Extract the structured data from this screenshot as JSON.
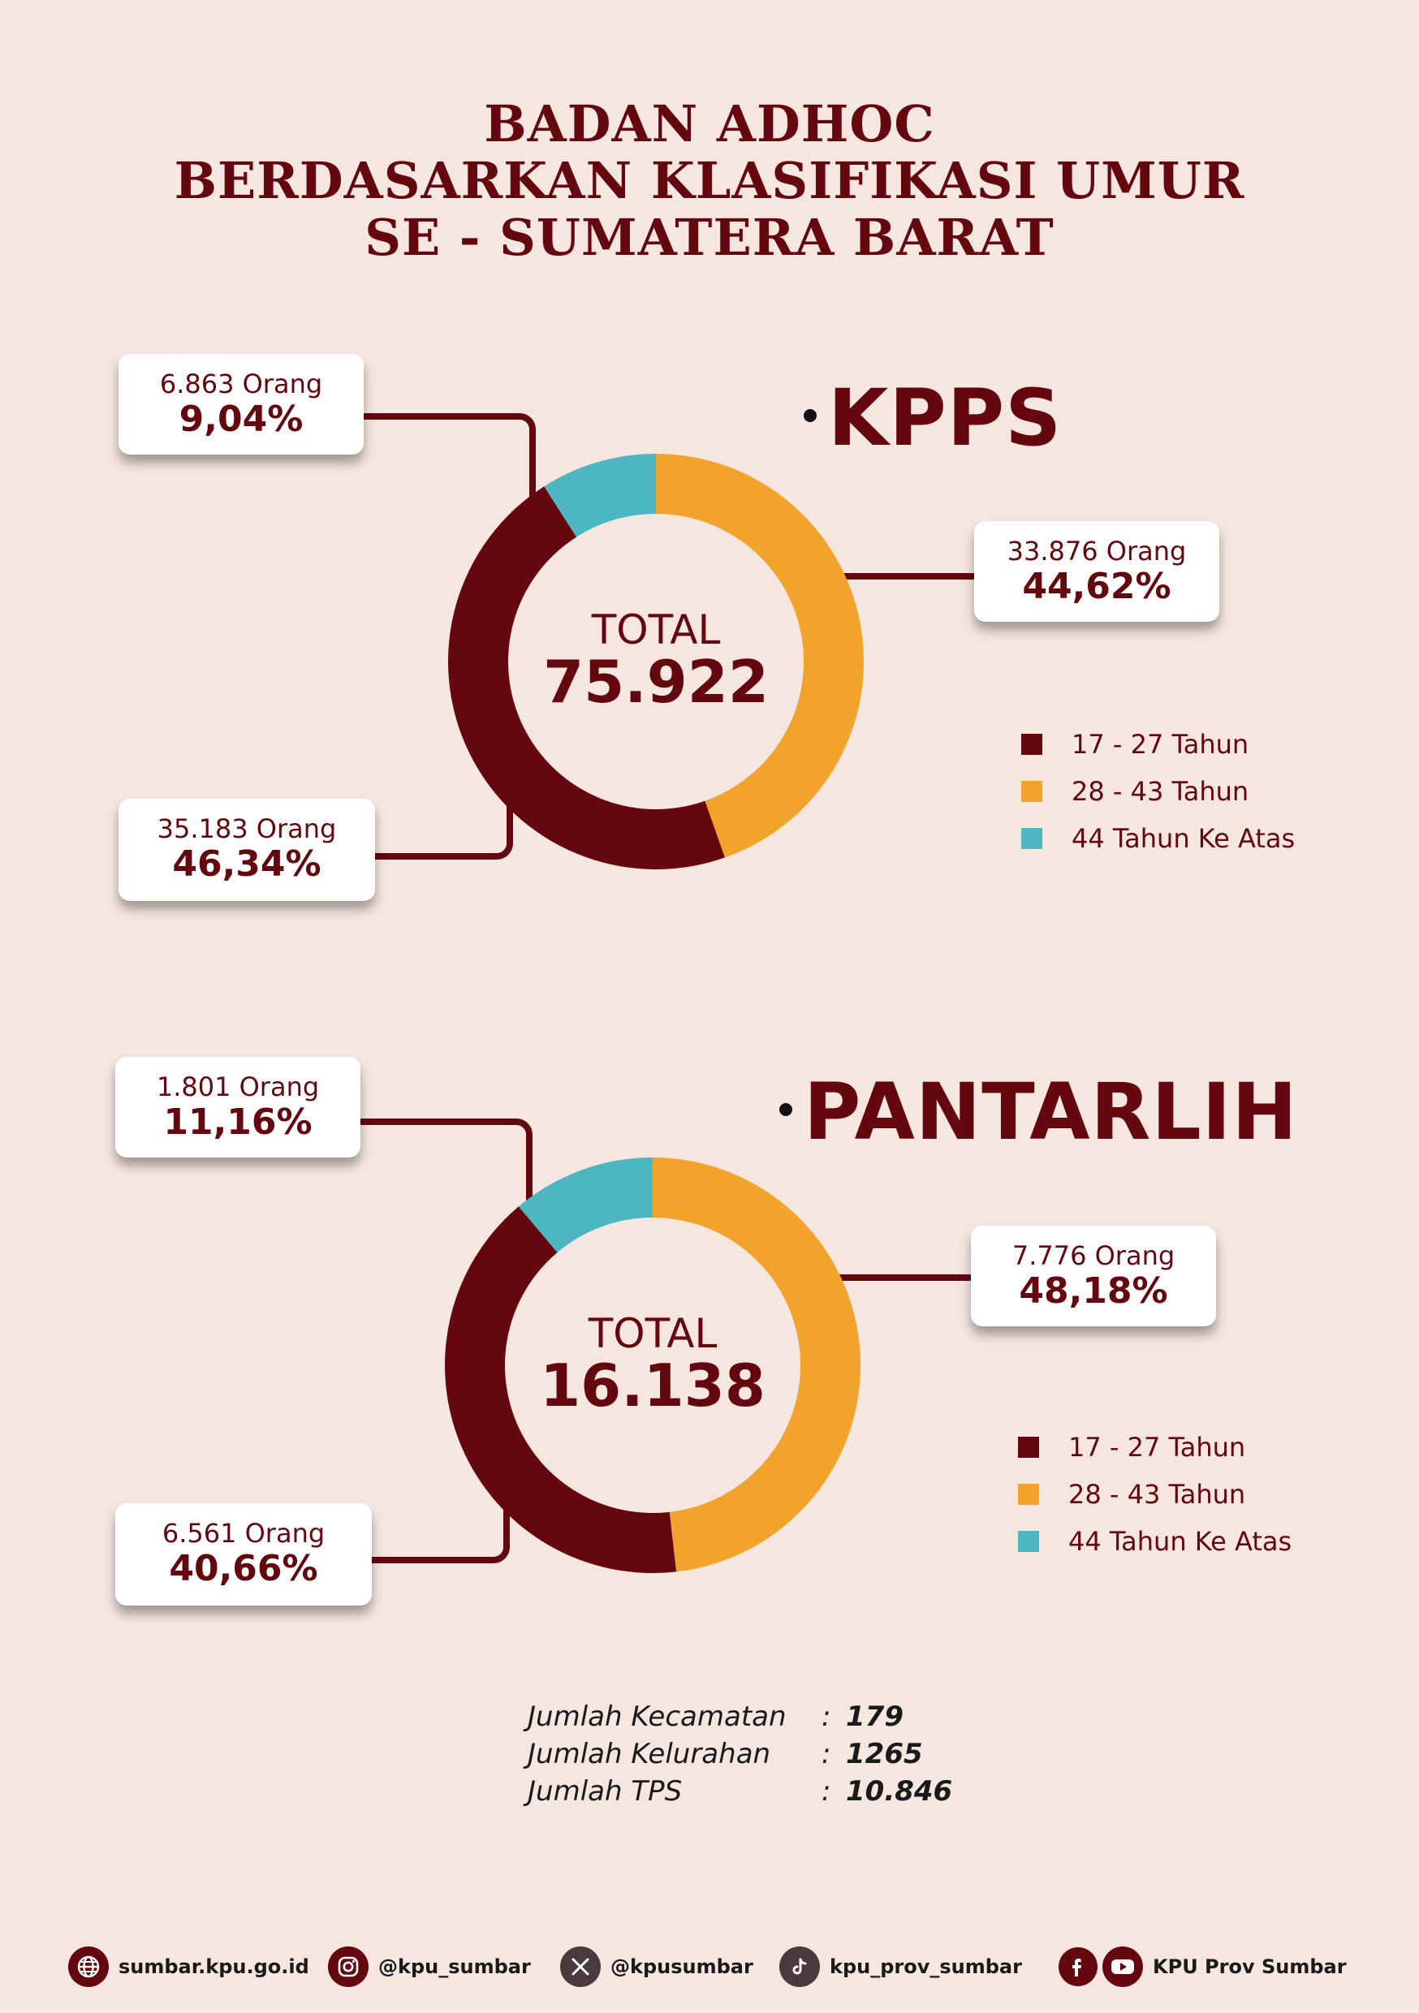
{
  "title": {
    "line1": "BADAN ADHOC",
    "line2": "BERDASARKAN KLASIFIKASI UMUR",
    "line3": "SE - SUMATERA BARAT"
  },
  "colors": {
    "age_17_27": "#65070f",
    "age_28_43": "#f2a32c",
    "age_44_up": "#4cb6c1",
    "background": "#f5e6e0"
  },
  "chart_data": [
    {
      "type": "pie",
      "title": "KPPS",
      "center_label": "TOTAL",
      "total": "75.922",
      "categories": [
        "17 - 27 Tahun",
        "28 - 43 Tahun",
        "44 Tahun Ke Atas"
      ],
      "values": [
        35183,
        33876,
        6863
      ],
      "percent": [
        46.34,
        44.62,
        9.04
      ],
      "callouts": [
        {
          "count": "35.183 Orang",
          "pct": "46,34%"
        },
        {
          "count": "33.876 Orang",
          "pct": "44,62%"
        },
        {
          "count": "6.863 Orang",
          "pct": "9,04%"
        }
      ],
      "legend_placement": "right"
    },
    {
      "type": "pie",
      "title": "PANTARLIH",
      "center_label": "TOTAL",
      "total": "16.138",
      "categories": [
        "17 - 27 Tahun",
        "28 - 43 Tahun",
        "44 Tahun Ke Atas"
      ],
      "values": [
        6561,
        7776,
        1801
      ],
      "percent": [
        40.66,
        48.18,
        11.16
      ],
      "callouts": [
        {
          "count": "6.561 Orang",
          "pct": "40,66%"
        },
        {
          "count": "7.776 Orang",
          "pct": "48,18%"
        },
        {
          "count": "1.801 Orang",
          "pct": "11,16%"
        }
      ],
      "legend_placement": "right"
    }
  ],
  "summary": [
    {
      "label": "Jumlah Kecamatan",
      "sep": ":",
      "value": "179"
    },
    {
      "label": "Jumlah Kelurahan",
      "sep": ":",
      "value": "1265"
    },
    {
      "label": "Jumlah TPS",
      "sep": ":",
      "value": "10.846"
    }
  ],
  "footer": {
    "website": {
      "icon": "globe-icon",
      "text": "sumbar.kpu.go.id"
    },
    "instagram": {
      "icon": "instagram-icon",
      "text": "@kpu_sumbar"
    },
    "x": {
      "icon": "x-icon",
      "text": "@kpusumbar"
    },
    "tiktok": {
      "icon": "tiktok-icon",
      "text": "kpu_prov_sumbar"
    },
    "facebook_youtube": {
      "icons": [
        "facebook-icon",
        "youtube-icon"
      ],
      "text": "KPU Prov Sumbar"
    }
  }
}
